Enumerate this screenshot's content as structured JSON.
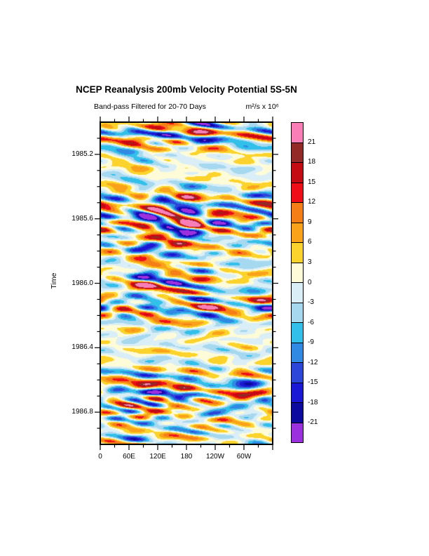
{
  "header": {
    "title": "NCEP Reanalysis 200mb Velocity Potential 5S-5N",
    "subtitle_left": "Band-pass Filtered for 20-70 Days",
    "subtitle_right": "m²/s x 10⁶"
  },
  "chart_data": {
    "type": "heatmap",
    "title": "NCEP Reanalysis 200mb Velocity Potential 5S-5N",
    "subtitle": "Band-pass Filtered for 20-70 Days",
    "units": "m²/s x 10⁶",
    "xlabel": "",
    "ylabel": "Time",
    "x_axis": {
      "min_deg": 0,
      "max_deg": 360,
      "major_tick_interval_deg": 60,
      "minor_tick_interval_deg": 30,
      "tick_labels": [
        {
          "deg": 0,
          "label": "0"
        },
        {
          "deg": 60,
          "label": "60E"
        },
        {
          "deg": 120,
          "label": "120E"
        },
        {
          "deg": 180,
          "label": "180"
        },
        {
          "deg": 240,
          "label": "120W"
        },
        {
          "deg": 300,
          "label": "60W"
        }
      ]
    },
    "y_axis": {
      "label": "Time",
      "min": 1985.0,
      "max": 1987.0,
      "minor_tick_interval": 0.1,
      "tick_labels": [
        {
          "time": 1985.2,
          "label": "1985.2"
        },
        {
          "time": 1985.6,
          "label": "1985.6"
        },
        {
          "time": 1986.0,
          "label": "1986.0"
        },
        {
          "time": 1986.4,
          "label": "1986.4"
        },
        {
          "time": 1986.8,
          "label": "1986.8"
        }
      ]
    },
    "colorbar": {
      "boundary_labels_top_to_bottom": [
        "21",
        "18",
        "15",
        "12",
        "9",
        "6",
        "3",
        "0",
        "-3",
        "-6",
        "-9",
        "-12",
        "-15",
        "-18",
        "-21"
      ],
      "bin_width": 3,
      "colors_top_to_bottom": [
        "#F97EB7",
        "#942A28",
        "#C40A13",
        "#EF0E18",
        "#F57E16",
        "#FAA31A",
        "#FBD32C",
        "#FEFBD9",
        "#D9EEF6",
        "#A6D8F0",
        "#32BFE9",
        "#3089E3",
        "#2B46D9",
        "#1A18D4",
        "#0D0B9F",
        "#9B30DF"
      ]
    },
    "field_synthesis": {
      "note": "filled-contour Hovmoller field approximated procedurally (original gridded values not recoverable from pixels)",
      "seed": 1985,
      "n_modes": 64,
      "zonal_wavenumber_max": 4,
      "period_days_range": [
        20,
        70
      ],
      "eastward_fraction": 0.75,
      "std_target": 7.8
    }
  }
}
